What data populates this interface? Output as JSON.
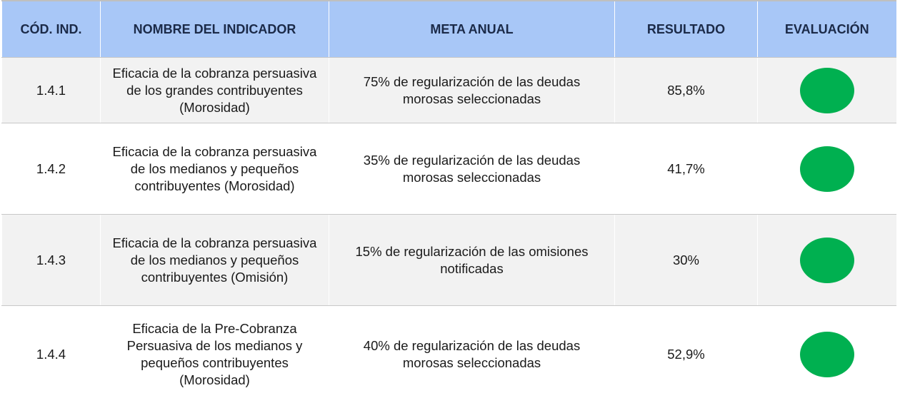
{
  "table": {
    "headers": [
      "CÓD. IND.",
      "NOMBRE DEL INDICADOR",
      "META ANUAL",
      "RESULTADO",
      "EVALUACIÓN"
    ],
    "rows": [
      [
        "1.4.1",
        "Eficacia de la cobranza persuasiva de los grandes contribuyentes (Morosidad)",
        "75% de regularización de las deudas morosas seleccionadas",
        "85,8%"
      ],
      [
        "1.4.2",
        "Eficacia de la cobranza persuasiva de los medianos y pequeños contribuyentes (Morosidad)",
        "35% de regularización de las deudas morosas seleccionadas",
        "41,7%"
      ],
      [
        "1.4.3",
        "Eficacia de la cobranza persuasiva de los medianos y pequeños contribuyentes (Omisión)",
        "15% de regularización de las omisiones notificadas",
        "30%"
      ],
      [
        "1.4.4",
        "Eficacia de la Pre-Cobranza Persuasiva de los medianos y pequeños contribuyentes (Morosidad)",
        "40% de regularización de las deudas morosas seleccionadas",
        "52,9%"
      ]
    ]
  }
}
